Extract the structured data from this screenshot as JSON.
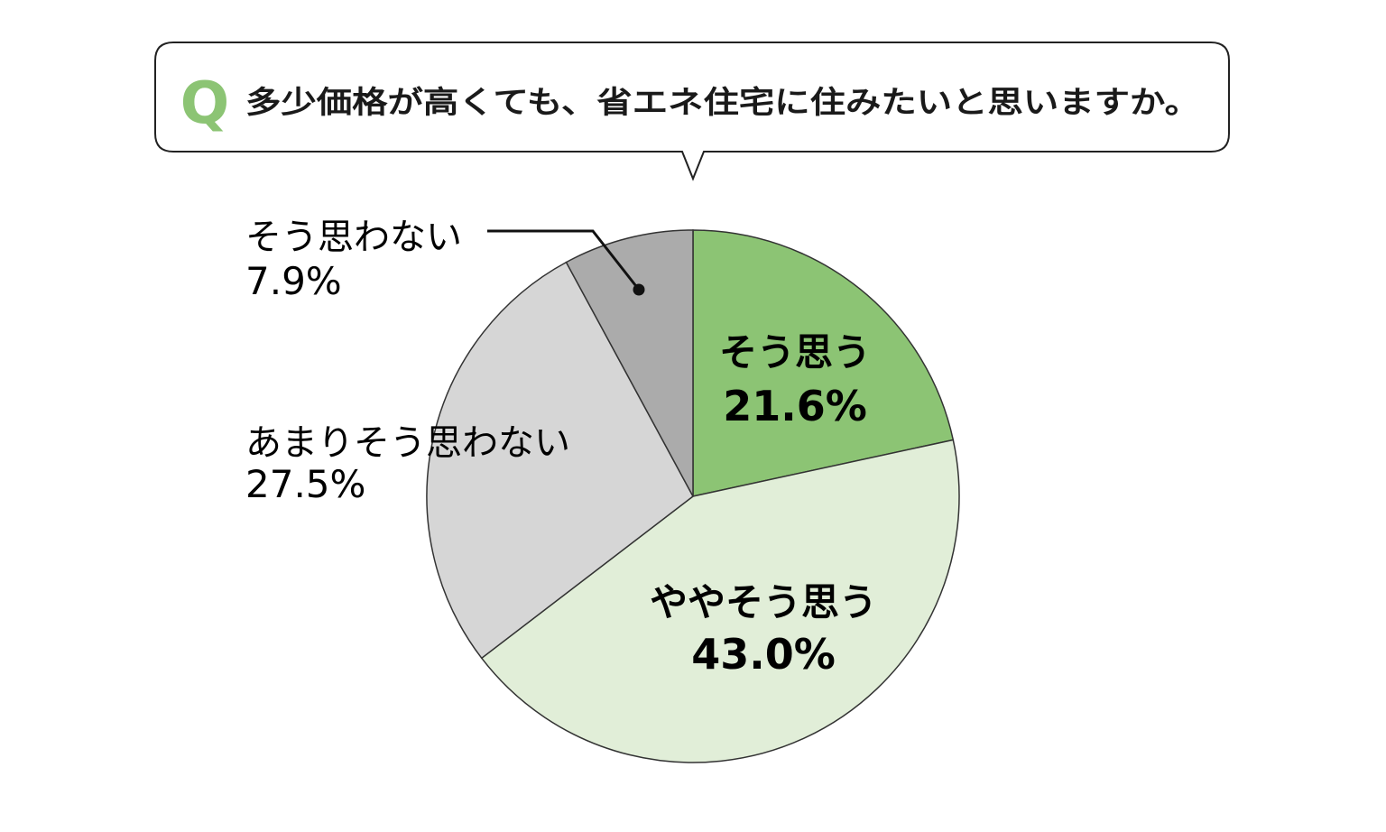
{
  "question": {
    "marker": "Q",
    "text": "多少価格が高くても、省エネ住宅に住みたいと思いますか。"
  },
  "chart_data": {
    "type": "pie",
    "title": "多少価格が高くても、省エネ住宅に住みたいと思いますか。",
    "slices": [
      {
        "label": "そう思う",
        "value": 21.6,
        "value_text": "21.6%",
        "color": "#8cc474"
      },
      {
        "label": "ややそう思う",
        "value": 43.0,
        "value_text": "43.0%",
        "color": "#e1eed8"
      },
      {
        "label": "あまりそう思わない",
        "value": 27.5,
        "value_text": "27.5%",
        "color": "#d6d6d6"
      },
      {
        "label": "そう思わない",
        "value": 7.9,
        "value_text": "7.9%",
        "color": "#ababab"
      }
    ],
    "start_angle": "12 o'clock",
    "direction": "clockwise",
    "outline_color": "#333333",
    "legend": "none",
    "accent_color": "#8cc474"
  }
}
